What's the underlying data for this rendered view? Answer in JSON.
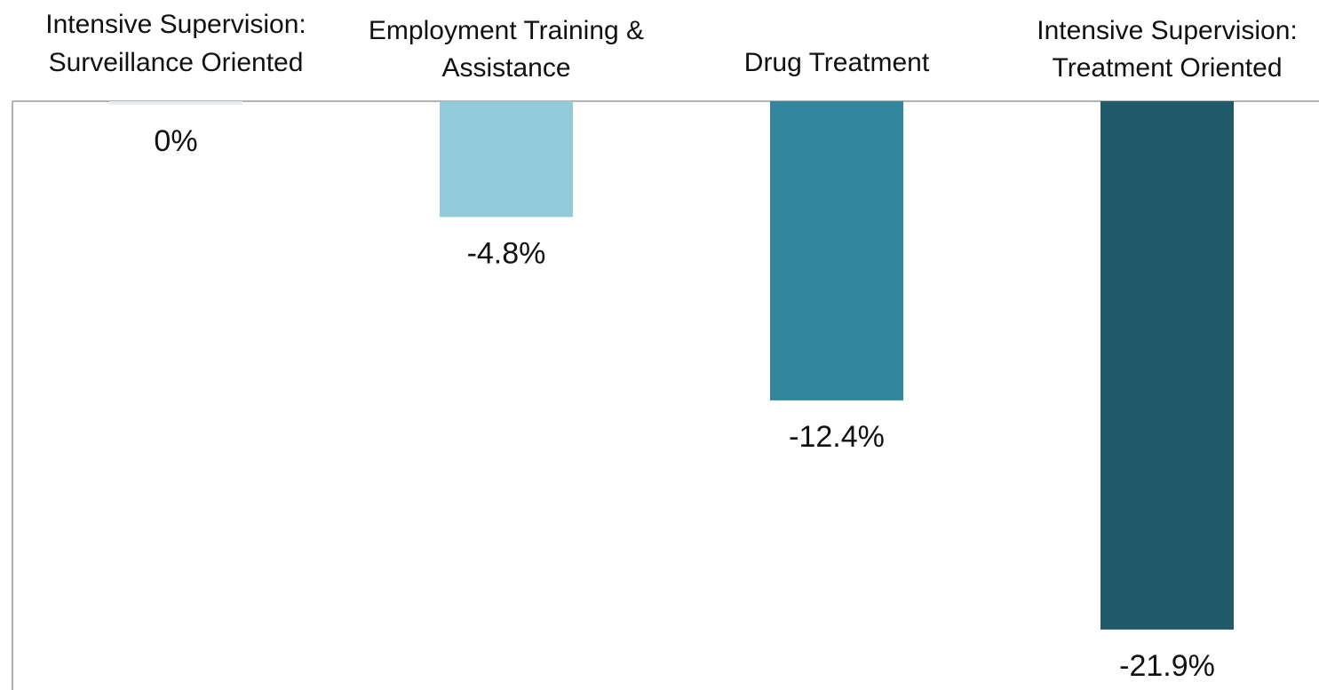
{
  "chart_data": {
    "type": "bar",
    "categories": [
      [
        "Intensive Supervision:",
        "Surveillance Oriented"
      ],
      [
        "Employment Training &",
        "Assistance"
      ],
      [
        "Drug Treatment"
      ],
      [
        "Intensive Supervision:",
        "Treatment Oriented"
      ]
    ],
    "values": [
      0,
      -4.8,
      -12.4,
      -21.9
    ],
    "value_labels": [
      "0%",
      "-4.8%",
      "-12.4%",
      "-21.9%"
    ],
    "ylim": [
      -24,
      0
    ],
    "grid": false,
    "colors": [
      "#e8eef0",
      "#93cbdb",
      "#31869e",
      "#215a69"
    ],
    "axis_color": "#9a9a9a"
  }
}
